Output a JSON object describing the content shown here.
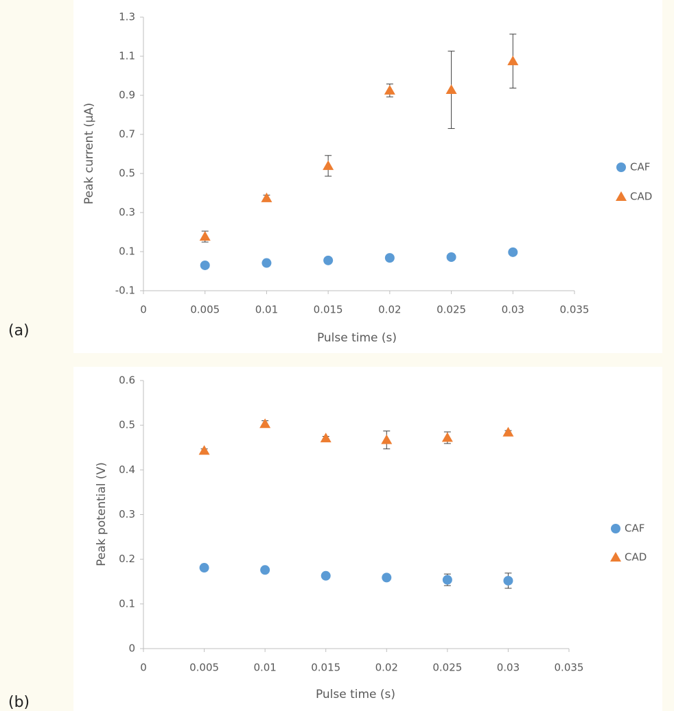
{
  "chart_data": [
    {
      "type": "scatter",
      "panel_label": "(a)",
      "x_label": "Pulse time (s)",
      "y_label": "Peak current (µA)",
      "x": [
        0.005,
        0.01,
        0.015,
        0.02,
        0.025,
        0.03
      ],
      "series": [
        {
          "name": "CAF",
          "color": "#5b9bd5",
          "marker": "circle",
          "values": [
            0.03,
            0.042,
            0.055,
            0.068,
            0.072,
            0.097
          ],
          "errors": [
            0.008,
            0.008,
            0.008,
            0.01,
            0.008,
            0.01
          ]
        },
        {
          "name": "CAD",
          "color": "#ed7d31",
          "marker": "triangle",
          "values": [
            0.177,
            0.374,
            0.539,
            0.925,
            0.928,
            1.075
          ],
          "errors": [
            0.028,
            0.015,
            0.053,
            0.033,
            0.198,
            0.138
          ]
        }
      ],
      "xlim": [
        0,
        0.035
      ],
      "xticks": [
        0,
        0.005,
        0.01,
        0.015,
        0.02,
        0.025,
        0.03,
        0.035
      ],
      "ylim": [
        -0.1,
        1.3
      ],
      "yticks": [
        -0.1,
        0.1,
        0.3,
        0.5,
        0.7,
        0.9,
        1.1,
        1.3
      ],
      "grid": false,
      "legend": "right"
    },
    {
      "type": "scatter",
      "panel_label": "(b)",
      "x_label": "Pulse time (s)",
      "y_label": "Peak potential (V)",
      "x": [
        0.005,
        0.01,
        0.015,
        0.02,
        0.025,
        0.03
      ],
      "series": [
        {
          "name": "CAF",
          "color": "#5b9bd5",
          "marker": "circle",
          "values": [
            0.181,
            0.176,
            0.163,
            0.159,
            0.154,
            0.152
          ],
          "errors": [
            0.005,
            0.005,
            0.003,
            0.003,
            0.013,
            0.017
          ]
        },
        {
          "name": "CAD",
          "color": "#ed7d31",
          "marker": "triangle",
          "values": [
            0.443,
            0.503,
            0.471,
            0.467,
            0.472,
            0.484
          ],
          "errors": [
            0.004,
            0.007,
            0.004,
            0.02,
            0.013,
            0.004
          ]
        }
      ],
      "xlim": [
        0,
        0.035
      ],
      "xticks": [
        0,
        0.005,
        0.01,
        0.015,
        0.02,
        0.025,
        0.03,
        0.035
      ],
      "ylim": [
        0,
        0.6
      ],
      "yticks": [
        0,
        0.1,
        0.2,
        0.3,
        0.4,
        0.5,
        0.6
      ],
      "grid": false,
      "legend": "right"
    }
  ]
}
